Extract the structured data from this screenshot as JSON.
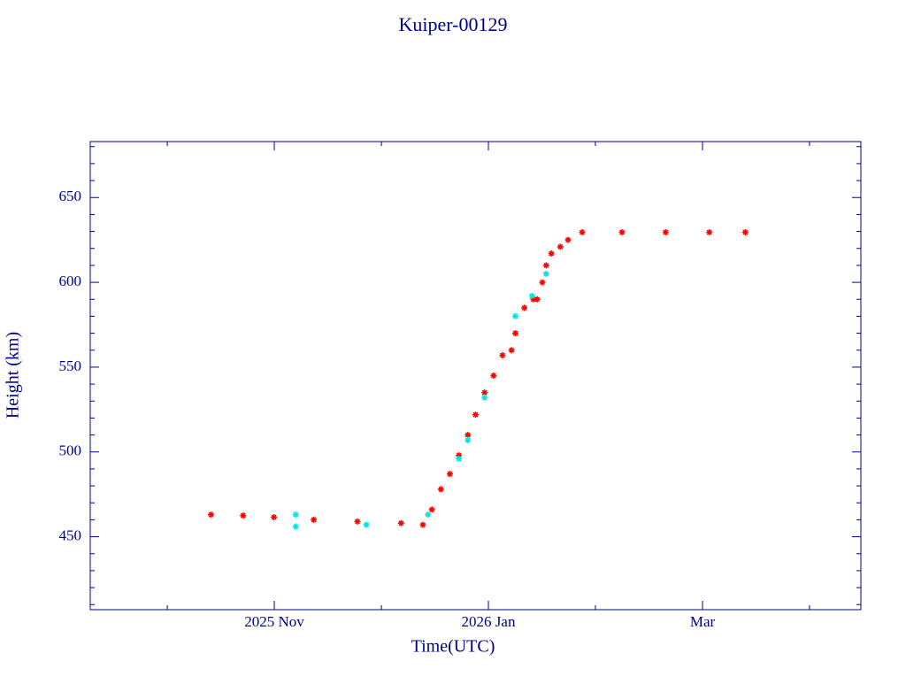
{
  "chart_data": {
    "type": "scatter",
    "title": "Kuiper-00129",
    "x_label": "Time(UTC)",
    "y_label": "Height (km)",
    "xlim": [
      2025.69,
      2026.29
    ],
    "xticks": [
      {
        "value": 2025.8333,
        "label": "2025 Nov"
      },
      {
        "value": 2026.0,
        "label": "2026 Jan"
      },
      {
        "value": 2026.1667,
        "label": "Mar"
      }
    ],
    "xminorticks": [
      2025.75,
      2025.9167,
      2026.0833,
      2026.25
    ],
    "ylim": [
      407,
      683
    ],
    "yticks": [
      450,
      500,
      550,
      600,
      650
    ],
    "yminorticks": [
      410,
      420,
      430,
      440,
      460,
      470,
      480,
      490,
      510,
      520,
      530,
      540,
      560,
      570,
      580,
      590,
      610,
      620,
      630,
      640,
      660,
      670,
      680
    ],
    "axis_color": "#00008b",
    "series": [
      {
        "color": "#ff0000",
        "x": [
          2025.784,
          2025.809,
          2025.833,
          2025.864,
          2025.898,
          2025.932,
          2025.949,
          2025.956,
          2025.963,
          2025.97,
          2025.977,
          2025.984,
          2025.99,
          2025.997,
          2026.004,
          2026.011,
          2026.018,
          2026.021,
          2026.028,
          2026.035,
          2026.038,
          2026.042,
          2026.045,
          2026.049,
          2026.056,
          2026.062,
          2026.073,
          2026.104,
          2026.138,
          2026.172,
          2026.2
        ],
        "values": [
          463,
          462.5,
          461.5,
          460,
          459,
          458,
          457,
          466,
          478,
          487,
          498,
          510,
          522,
          535,
          545,
          557,
          560,
          570,
          585,
          590,
          590,
          600,
          610,
          617,
          621,
          625,
          629.5,
          629.5,
          629.5,
          629.5,
          629.5
        ]
      },
      {
        "color": "#00e5e5",
        "x": [
          2025.85,
          2025.85,
          2025.905,
          2025.953,
          2025.977,
          2025.984,
          2025.997,
          2026.021,
          2026.034,
          2026.045
        ],
        "values": [
          456,
          463,
          457,
          463,
          496,
          507,
          532,
          580,
          592,
          605
        ]
      }
    ]
  }
}
